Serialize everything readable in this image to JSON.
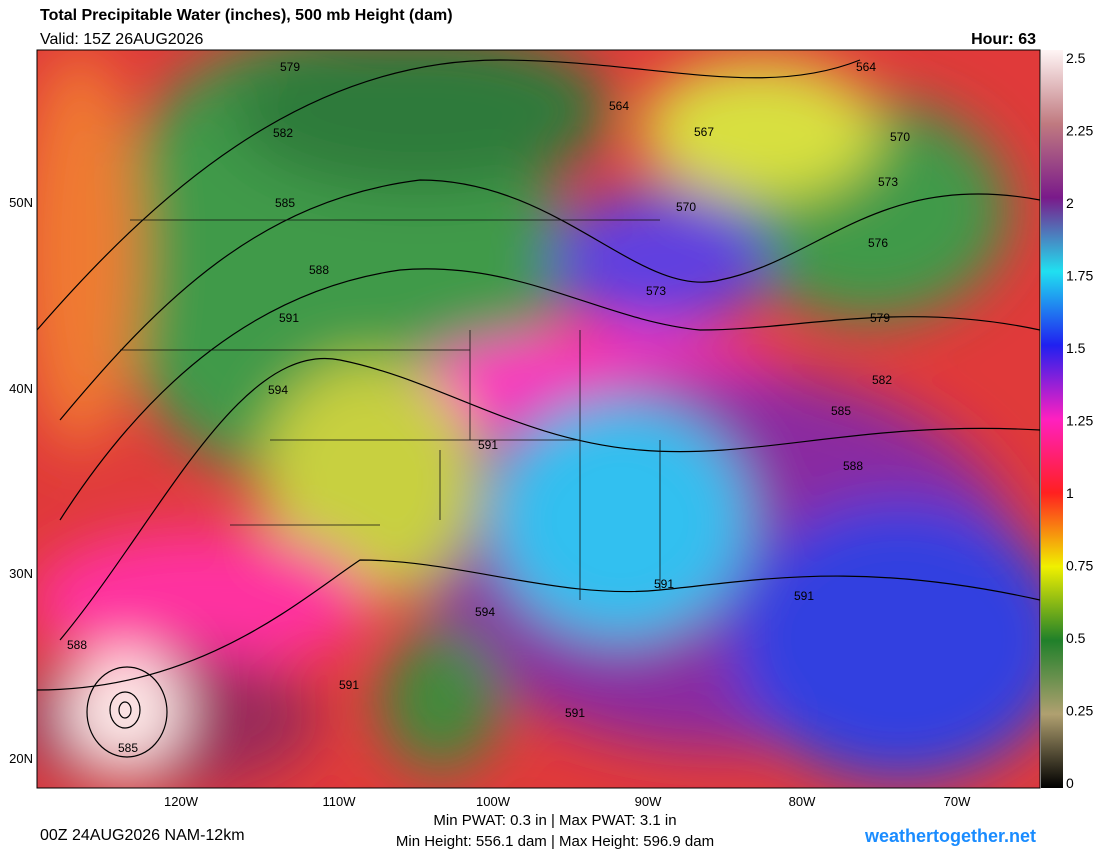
{
  "header": {
    "title": "Total Precipitable Water (inches), 500 mb Height (dam)",
    "valid": "Valid: 15Z 26AUG2026",
    "hour": "Hour: 63"
  },
  "map": {
    "lat_labels": [
      "50N",
      "40N",
      "30N",
      "20N"
    ],
    "lon_labels": [
      "120W",
      "110W",
      "100W",
      "90W",
      "80W",
      "70W"
    ],
    "contour_labels": [
      "579",
      "564",
      "564",
      "567",
      "570",
      "582",
      "585",
      "570",
      "573",
      "576",
      "588",
      "573",
      "579",
      "591",
      "594",
      "582",
      "585",
      "591",
      "588",
      "591",
      "591",
      "594",
      "588",
      "591",
      "591",
      "585"
    ]
  },
  "colorbar": {
    "ticks": [
      "2.5",
      "2.25",
      "2",
      "1.75",
      "1.5",
      "1.25",
      "1",
      "0.75",
      "0.5",
      "0.25",
      "0"
    ]
  },
  "footer": {
    "run": "00Z 24AUG2026 NAM-12km",
    "pwat": "Min PWAT:   0.3 in | Max PWAT:   3.1 in",
    "height": "Min Height: 556.1 dam | Max Height: 596.9 dam",
    "site": "weathertogether.net"
  }
}
